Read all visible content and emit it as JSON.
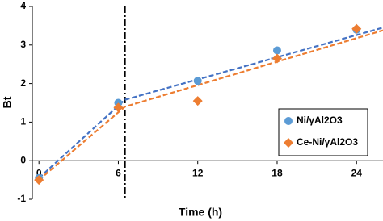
{
  "chart_data": {
    "type": "scatter",
    "xlabel": "Time (h)",
    "ylabel": "Bt",
    "xlim": [
      -0.5,
      26
    ],
    "xticks": [
      0,
      6,
      12,
      18,
      24
    ],
    "ylim": [
      -1,
      4
    ],
    "yticks": [
      -1,
      0,
      1,
      2,
      3,
      4
    ],
    "grid": false,
    "legend": "right",
    "series": [
      {
        "name": "Ni/γAl2O3",
        "color": "#5b9bd5",
        "marker": "circle",
        "x": [
          0,
          6,
          12,
          18,
          24
        ],
        "values": [
          -0.45,
          1.5,
          2.07,
          2.86,
          3.4
        ]
      },
      {
        "name": "Ce-Ni/γAl2O3",
        "color": "#ed7d31",
        "marker": "diamond",
        "x": [
          0,
          6,
          12,
          18,
          24
        ],
        "values": [
          -0.5,
          1.38,
          1.55,
          2.65,
          3.42
        ]
      }
    ],
    "trendlines": [
      {
        "color": "#4472c4",
        "x": [
          0,
          6.5,
          26
        ],
        "values": [
          -0.45,
          1.58,
          3.45
        ]
      },
      {
        "color": "#ed7d31",
        "x": [
          0,
          6.5,
          26
        ],
        "values": [
          -0.5,
          1.4,
          3.38
        ]
      }
    ],
    "vline": 6.5
  }
}
